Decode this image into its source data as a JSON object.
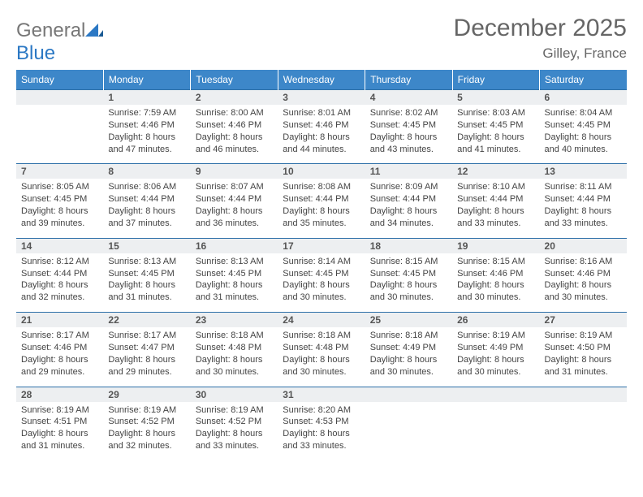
{
  "brand": {
    "part1": "General",
    "part2": "Blue"
  },
  "title": "December 2025",
  "location": "Gilley, France",
  "colors": {
    "header_bg": "#3d87c9",
    "header_border": "#2d6fa8",
    "daynum_bg": "#edeff1",
    "text": "#444444",
    "title_color": "#666666"
  },
  "day_headers": [
    "Sunday",
    "Monday",
    "Tuesday",
    "Wednesday",
    "Thursday",
    "Friday",
    "Saturday"
  ],
  "weeks": [
    [
      null,
      {
        "n": "1",
        "sr": "7:59 AM",
        "ss": "4:46 PM",
        "dl": "8 hours and 47 minutes."
      },
      {
        "n": "2",
        "sr": "8:00 AM",
        "ss": "4:46 PM",
        "dl": "8 hours and 46 minutes."
      },
      {
        "n": "3",
        "sr": "8:01 AM",
        "ss": "4:46 PM",
        "dl": "8 hours and 44 minutes."
      },
      {
        "n": "4",
        "sr": "8:02 AM",
        "ss": "4:45 PM",
        "dl": "8 hours and 43 minutes."
      },
      {
        "n": "5",
        "sr": "8:03 AM",
        "ss": "4:45 PM",
        "dl": "8 hours and 41 minutes."
      },
      {
        "n": "6",
        "sr": "8:04 AM",
        "ss": "4:45 PM",
        "dl": "8 hours and 40 minutes."
      }
    ],
    [
      {
        "n": "7",
        "sr": "8:05 AM",
        "ss": "4:45 PM",
        "dl": "8 hours and 39 minutes."
      },
      {
        "n": "8",
        "sr": "8:06 AM",
        "ss": "4:44 PM",
        "dl": "8 hours and 37 minutes."
      },
      {
        "n": "9",
        "sr": "8:07 AM",
        "ss": "4:44 PM",
        "dl": "8 hours and 36 minutes."
      },
      {
        "n": "10",
        "sr": "8:08 AM",
        "ss": "4:44 PM",
        "dl": "8 hours and 35 minutes."
      },
      {
        "n": "11",
        "sr": "8:09 AM",
        "ss": "4:44 PM",
        "dl": "8 hours and 34 minutes."
      },
      {
        "n": "12",
        "sr": "8:10 AM",
        "ss": "4:44 PM",
        "dl": "8 hours and 33 minutes."
      },
      {
        "n": "13",
        "sr": "8:11 AM",
        "ss": "4:44 PM",
        "dl": "8 hours and 33 minutes."
      }
    ],
    [
      {
        "n": "14",
        "sr": "8:12 AM",
        "ss": "4:44 PM",
        "dl": "8 hours and 32 minutes."
      },
      {
        "n": "15",
        "sr": "8:13 AM",
        "ss": "4:45 PM",
        "dl": "8 hours and 31 minutes."
      },
      {
        "n": "16",
        "sr": "8:13 AM",
        "ss": "4:45 PM",
        "dl": "8 hours and 31 minutes."
      },
      {
        "n": "17",
        "sr": "8:14 AM",
        "ss": "4:45 PM",
        "dl": "8 hours and 30 minutes."
      },
      {
        "n": "18",
        "sr": "8:15 AM",
        "ss": "4:45 PM",
        "dl": "8 hours and 30 minutes."
      },
      {
        "n": "19",
        "sr": "8:15 AM",
        "ss": "4:46 PM",
        "dl": "8 hours and 30 minutes."
      },
      {
        "n": "20",
        "sr": "8:16 AM",
        "ss": "4:46 PM",
        "dl": "8 hours and 30 minutes."
      }
    ],
    [
      {
        "n": "21",
        "sr": "8:17 AM",
        "ss": "4:46 PM",
        "dl": "8 hours and 29 minutes."
      },
      {
        "n": "22",
        "sr": "8:17 AM",
        "ss": "4:47 PM",
        "dl": "8 hours and 29 minutes."
      },
      {
        "n": "23",
        "sr": "8:18 AM",
        "ss": "4:48 PM",
        "dl": "8 hours and 30 minutes."
      },
      {
        "n": "24",
        "sr": "8:18 AM",
        "ss": "4:48 PM",
        "dl": "8 hours and 30 minutes."
      },
      {
        "n": "25",
        "sr": "8:18 AM",
        "ss": "4:49 PM",
        "dl": "8 hours and 30 minutes."
      },
      {
        "n": "26",
        "sr": "8:19 AM",
        "ss": "4:49 PM",
        "dl": "8 hours and 30 minutes."
      },
      {
        "n": "27",
        "sr": "8:19 AM",
        "ss": "4:50 PM",
        "dl": "8 hours and 31 minutes."
      }
    ],
    [
      {
        "n": "28",
        "sr": "8:19 AM",
        "ss": "4:51 PM",
        "dl": "8 hours and 31 minutes."
      },
      {
        "n": "29",
        "sr": "8:19 AM",
        "ss": "4:52 PM",
        "dl": "8 hours and 32 minutes."
      },
      {
        "n": "30",
        "sr": "8:19 AM",
        "ss": "4:52 PM",
        "dl": "8 hours and 33 minutes."
      },
      {
        "n": "31",
        "sr": "8:20 AM",
        "ss": "4:53 PM",
        "dl": "8 hours and 33 minutes."
      },
      null,
      null,
      null
    ]
  ],
  "labels": {
    "sunrise": "Sunrise: ",
    "sunset": "Sunset: ",
    "daylight": "Daylight: "
  }
}
